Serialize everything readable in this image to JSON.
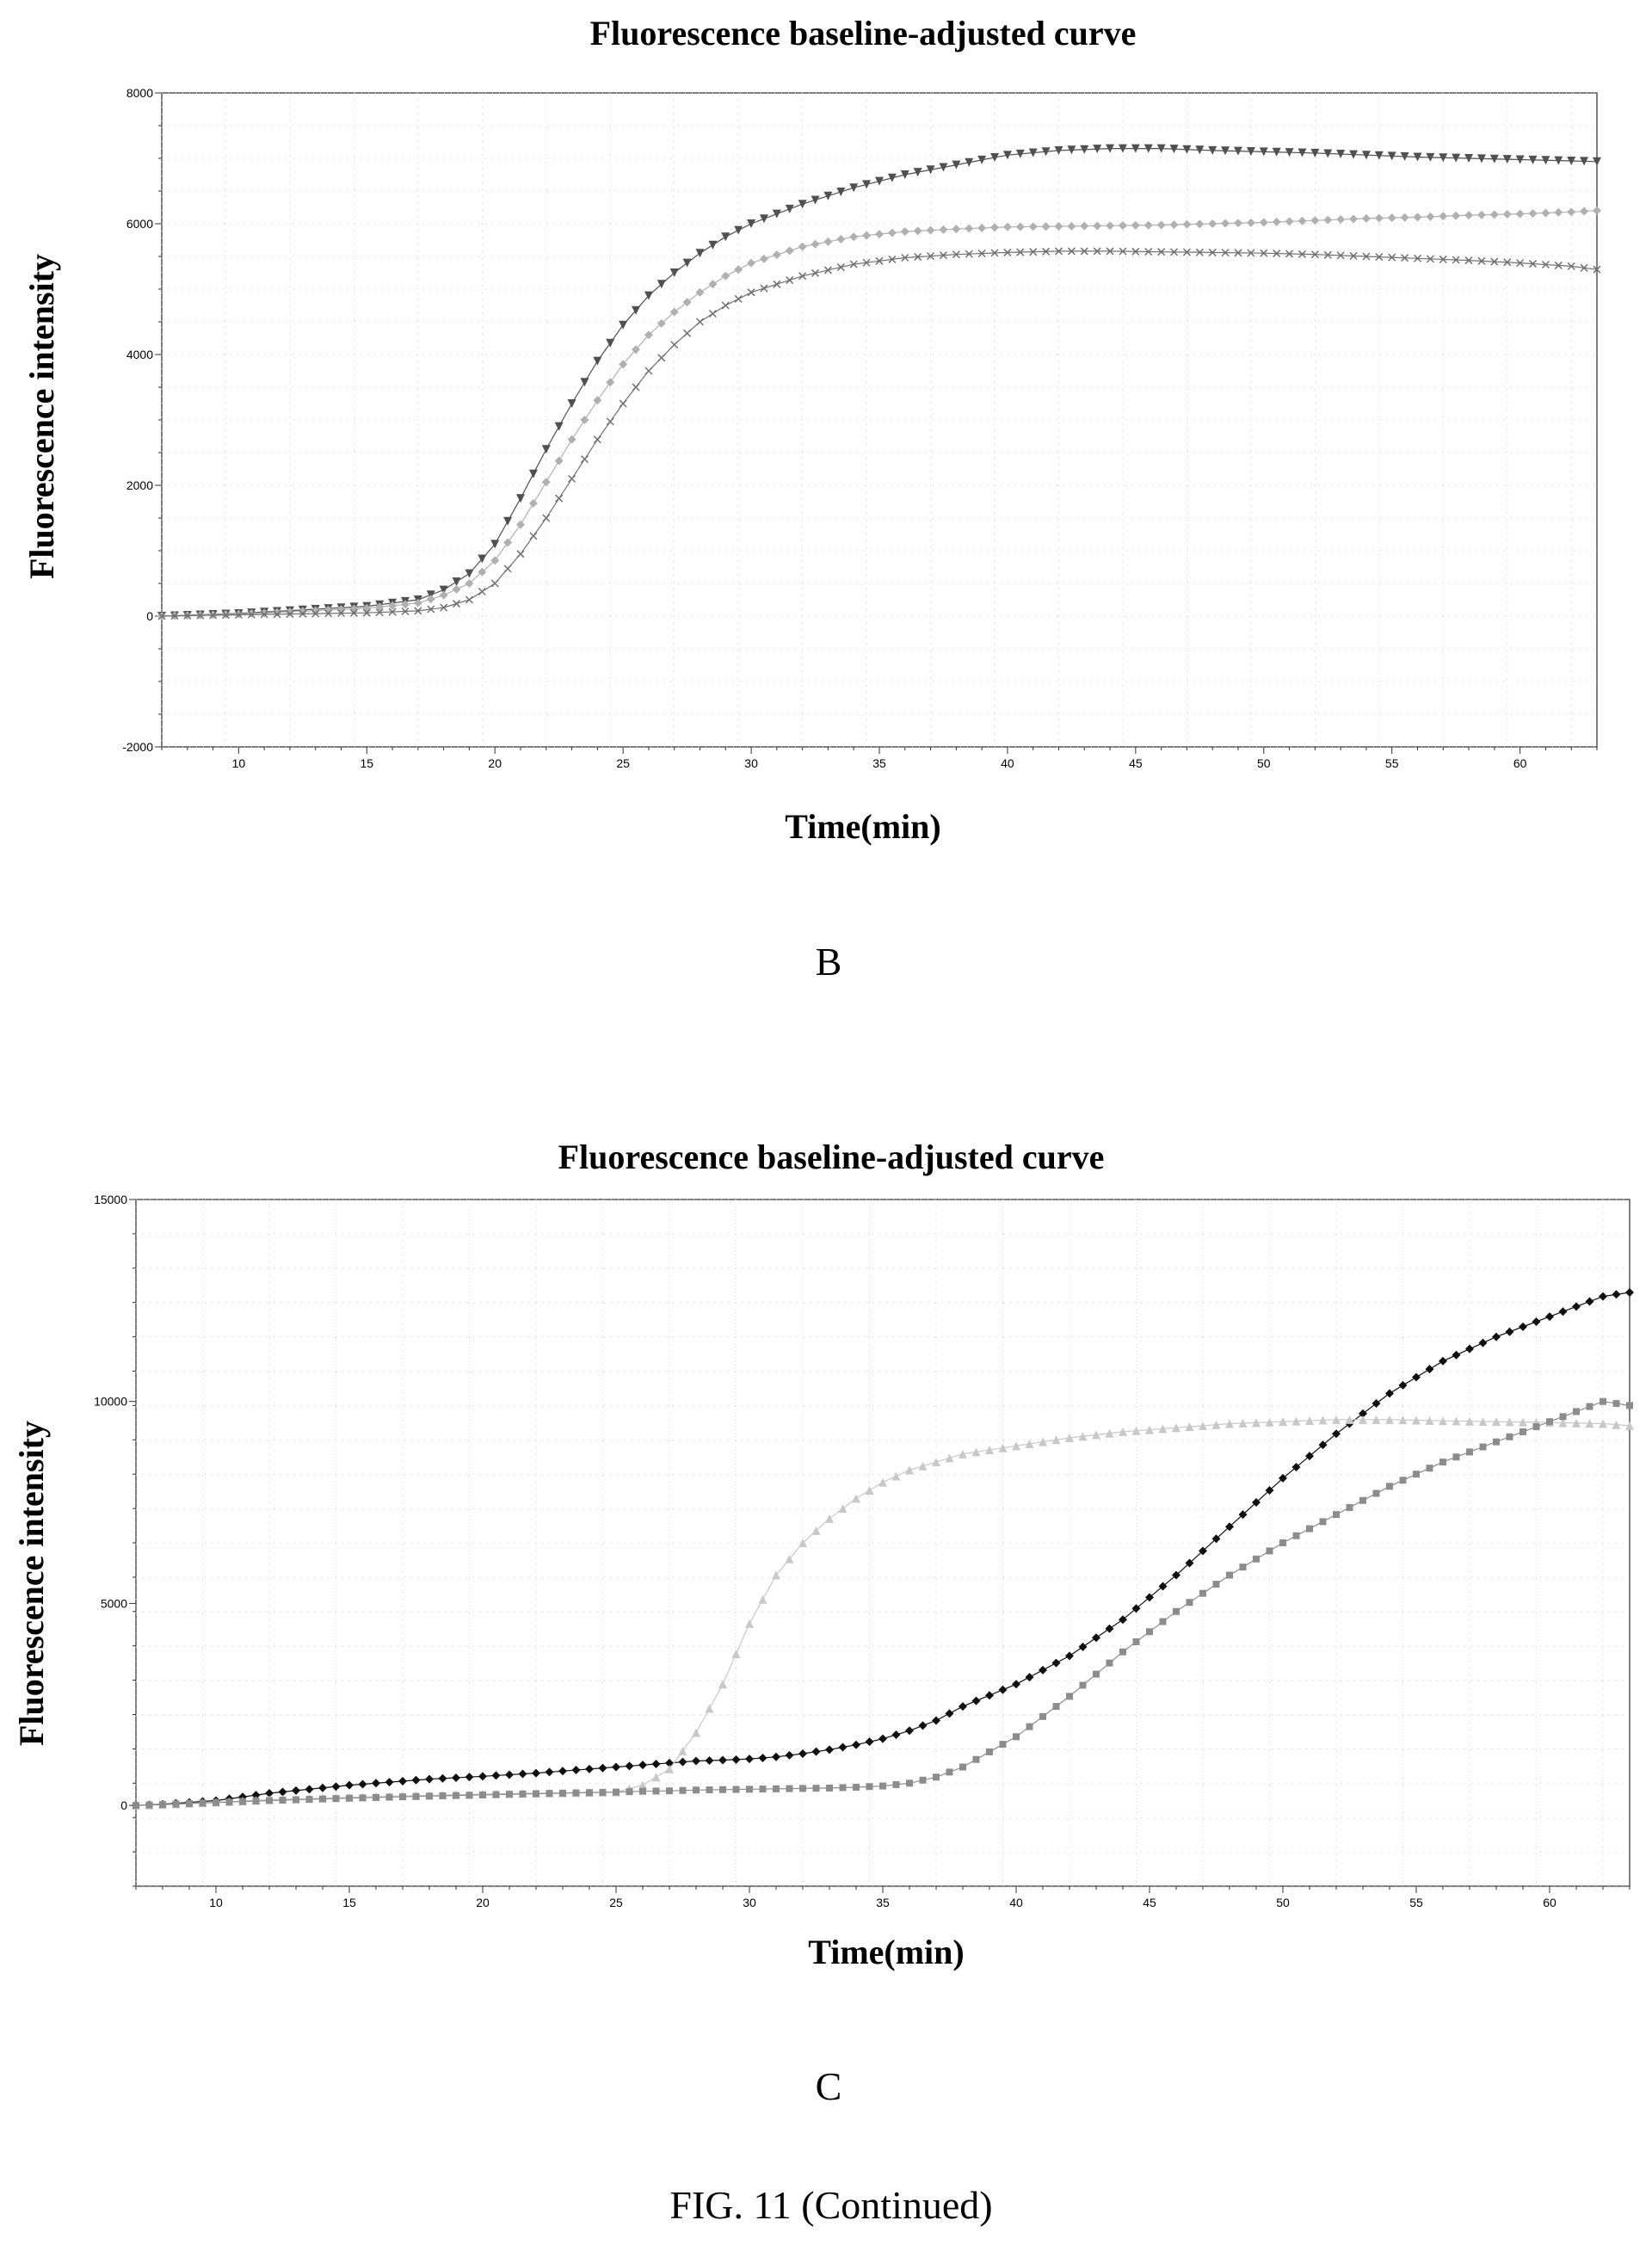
{
  "figure_caption": "FIG. 11 (Continued)",
  "chart_data": [
    {
      "panel": "B",
      "type": "line",
      "title": "Fluorescence baseline-adjusted curve",
      "xlabel": "Time(min)",
      "ylabel": "Fluorescence intensity",
      "xlim": [
        7,
        63
      ],
      "ylim": [
        -2000,
        8000
      ],
      "xticks": [
        10,
        15,
        20,
        25,
        30,
        35,
        40,
        45,
        50,
        55,
        60
      ],
      "yticks": [
        -2000,
        0,
        2000,
        4000,
        6000,
        8000
      ],
      "grid": true,
      "legend": "none",
      "x": [
        7,
        10,
        15,
        17,
        18,
        19,
        20,
        21,
        22,
        23,
        24,
        25,
        26,
        27,
        28,
        29,
        30,
        32,
        34,
        36,
        38,
        40,
        42,
        44,
        46,
        48,
        50,
        52,
        54,
        56,
        58,
        60,
        62,
        63
      ],
      "series": [
        {
          "marker": "triangle-down",
          "color": "#505050",
          "values": [
            0,
            40,
            150,
            250,
            400,
            650,
            1100,
            1800,
            2550,
            3250,
            3900,
            4450,
            4900,
            5250,
            5550,
            5800,
            6000,
            6300,
            6550,
            6750,
            6900,
            7050,
            7120,
            7150,
            7150,
            7120,
            7100,
            7080,
            7050,
            7020,
            7000,
            6980,
            6960,
            6950
          ]
        },
        {
          "marker": "diamond",
          "color": "#b0b0b0",
          "values": [
            0,
            30,
            120,
            200,
            320,
            500,
            850,
            1400,
            2050,
            2700,
            3300,
            3850,
            4300,
            4650,
            4950,
            5200,
            5400,
            5650,
            5800,
            5880,
            5920,
            5950,
            5960,
            5970,
            5980,
            6000,
            6020,
            6050,
            6080,
            6100,
            6130,
            6150,
            6180,
            6200
          ]
        },
        {
          "marker": "x",
          "color": "#707070",
          "values": [
            0,
            20,
            50,
            80,
            130,
            250,
            500,
            950,
            1500,
            2100,
            2700,
            3250,
            3750,
            4150,
            4500,
            4750,
            4950,
            5200,
            5380,
            5480,
            5530,
            5560,
            5580,
            5580,
            5570,
            5560,
            5550,
            5530,
            5500,
            5470,
            5440,
            5400,
            5350,
            5300
          ]
        }
      ]
    },
    {
      "panel": "C",
      "type": "line",
      "title": "Fluorescence baseline-adjusted curve",
      "xlabel": "Time(min)",
      "ylabel": "Fluorescence intensity",
      "xlim": [
        7,
        63
      ],
      "ylim": [
        -2000,
        15000
      ],
      "xticks": [
        10,
        15,
        20,
        25,
        30,
        35,
        40,
        45,
        50,
        55,
        60
      ],
      "yticks": [
        0,
        5000,
        10000,
        15000
      ],
      "grid": true,
      "legend": "none",
      "x": [
        7,
        8,
        10,
        12,
        15,
        18,
        20,
        22,
        25,
        26,
        27,
        28,
        29,
        30,
        31,
        32,
        33,
        34,
        35,
        36,
        37,
        38,
        40,
        42,
        44,
        46,
        48,
        50,
        52,
        54,
        56,
        58,
        60,
        62,
        63
      ],
      "series": [
        {
          "marker": "diamond",
          "color": "#101010",
          "values": [
            0,
            30,
            120,
            300,
            500,
            650,
            720,
            800,
            950,
            1000,
            1050,
            1100,
            1120,
            1150,
            1200,
            1280,
            1380,
            1500,
            1650,
            1850,
            2100,
            2450,
            3000,
            3700,
            4600,
            5700,
            6900,
            8100,
            9200,
            10200,
            11000,
            11600,
            12100,
            12600,
            12700
          ]
        },
        {
          "marker": "triangle",
          "color": "#c8c8c8",
          "values": [
            0,
            20,
            80,
            140,
            200,
            250,
            280,
            300,
            330,
            500,
            900,
            1800,
            3000,
            4500,
            5700,
            6500,
            7100,
            7600,
            8000,
            8300,
            8500,
            8700,
            8900,
            9100,
            9250,
            9350,
            9450,
            9500,
            9550,
            9550,
            9520,
            9500,
            9480,
            9450,
            9400
          ]
        },
        {
          "marker": "square",
          "color": "#8c8c8c",
          "values": [
            0,
            20,
            70,
            120,
            180,
            230,
            260,
            290,
            330,
            350,
            360,
            380,
            390,
            400,
            410,
            420,
            430,
            450,
            480,
            550,
            700,
            950,
            1700,
            2700,
            3800,
            4800,
            5700,
            6500,
            7200,
            7900,
            8500,
            9000,
            9500,
            10000,
            9900
          ]
        }
      ]
    }
  ]
}
